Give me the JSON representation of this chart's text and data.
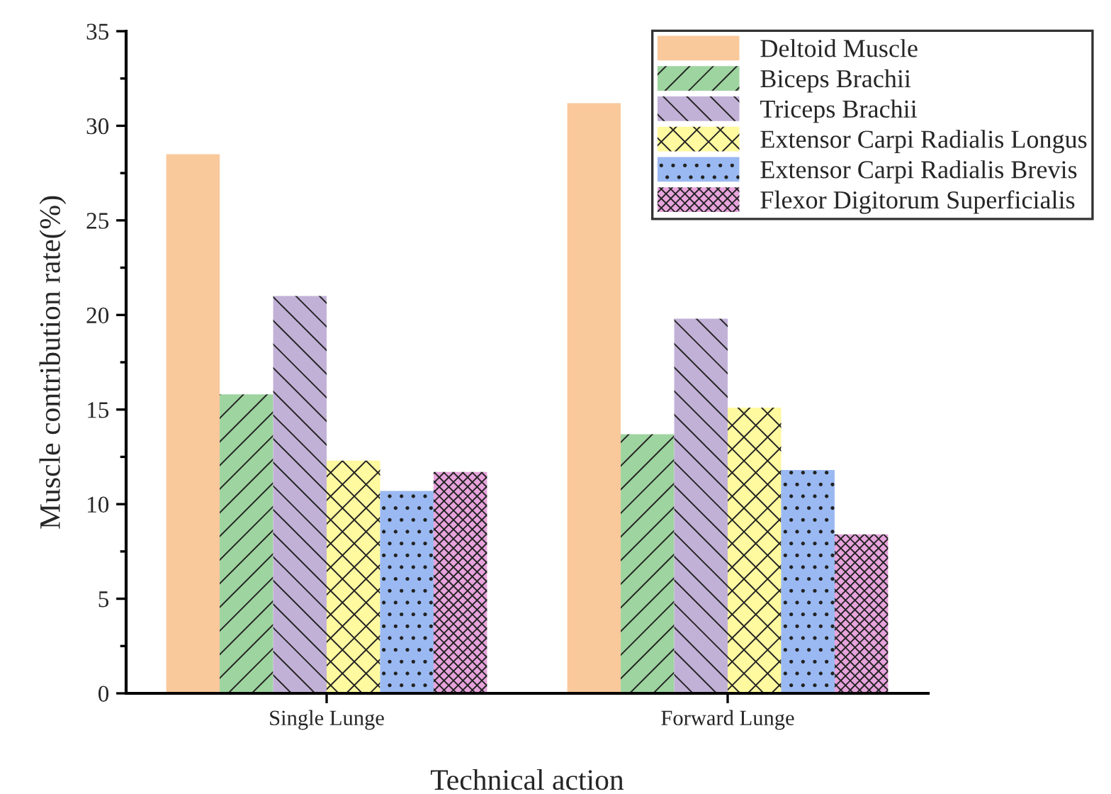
{
  "chart_data": {
    "type": "bar",
    "xlabel": "Technical action",
    "ylabel": "Muscle contribution rate(%)",
    "categories": [
      "Single Lunge",
      "Forward Lunge"
    ],
    "series": [
      {
        "name": "Deltoid Muscle",
        "color": "#f9c89b",
        "values": [
          28.5,
          31.2
        ]
      },
      {
        "name": "Biceps Brachii",
        "color": "#9ed49f",
        "values": [
          15.8,
          13.7
        ]
      },
      {
        "name": "Triceps Brachii",
        "color": "#c2b1d7",
        "values": [
          21.0,
          19.8
        ]
      },
      {
        "name": "Extensor Carpi Radialis Longus",
        "color": "#fff99f",
        "values": [
          12.3,
          15.1
        ]
      },
      {
        "name": "Extensor Carpi Radialis Brevis",
        "color": "#9ab9f2",
        "values": [
          10.7,
          11.8
        ]
      },
      {
        "name": "Flexor Digitorum Superficialis",
        "color": "#e7a3dc",
        "values": [
          11.7,
          8.4
        ]
      }
    ],
    "ylim": [
      0,
      35
    ],
    "yticks": [
      0,
      5,
      10,
      15,
      20,
      25,
      30,
      35
    ],
    "legend": "top right",
    "grid": false
  }
}
